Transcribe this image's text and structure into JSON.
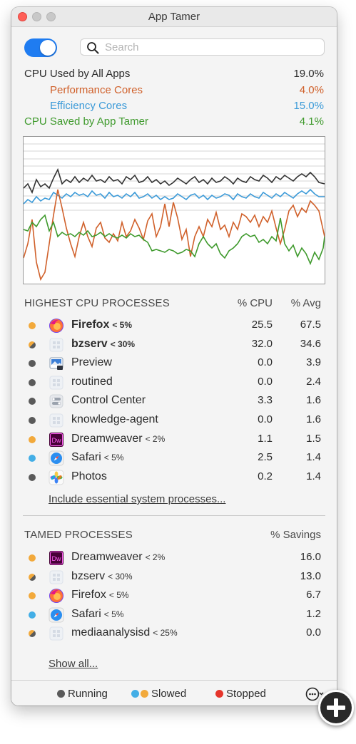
{
  "window": {
    "title": "App Tamer"
  },
  "search": {
    "placeholder": "Search",
    "value": ""
  },
  "stats": [
    {
      "label": "CPU Used by All Apps",
      "value": "19.0%",
      "color": "#2b2b2b"
    },
    {
      "label": "Performance Cores",
      "value": "4.0%",
      "color": "#d0602a"
    },
    {
      "label": "Efficiency Cores",
      "value": "15.0%",
      "color": "#3b9ad8"
    },
    {
      "label": "CPU Saved by App Tamer",
      "value": "4.1%",
      "color": "#3f9a2d"
    }
  ],
  "highest": {
    "title": "HIGHEST CPU PROCESSES",
    "col_cpu": "% CPU",
    "col_avg": "% Avg",
    "rows": [
      {
        "name": "Firefox",
        "limit": "< 5%",
        "bold": true,
        "status": "slowed",
        "icon": "firefox-icon",
        "cpu": "25.5",
        "avg": "67.5"
      },
      {
        "name": "bzserv",
        "limit": "< 30%",
        "bold": true,
        "status": "half",
        "icon": "generic-app-icon",
        "cpu": "32.0",
        "avg": "34.6"
      },
      {
        "name": "Preview",
        "limit": "",
        "bold": false,
        "status": "running",
        "icon": "preview-icon",
        "cpu": "0.0",
        "avg": "3.9"
      },
      {
        "name": "routined",
        "limit": "",
        "bold": false,
        "status": "running",
        "icon": "generic-app-icon",
        "cpu": "0.0",
        "avg": "2.4"
      },
      {
        "name": "Control Center",
        "limit": "",
        "bold": false,
        "status": "running",
        "icon": "control-center-icon",
        "cpu": "3.3",
        "avg": "1.6"
      },
      {
        "name": "knowledge-agent",
        "limit": "",
        "bold": false,
        "status": "running",
        "icon": "generic-app-icon",
        "cpu": "0.0",
        "avg": "1.6"
      },
      {
        "name": "Dreamweaver",
        "limit": "< 2%",
        "bold": false,
        "status": "slowed",
        "icon": "dreamweaver-icon",
        "cpu": "1.1",
        "avg": "1.5"
      },
      {
        "name": "Safari",
        "limit": "< 5%",
        "bold": false,
        "status": "blue",
        "icon": "safari-icon",
        "cpu": "2.5",
        "avg": "1.4"
      },
      {
        "name": "Photos",
        "limit": "",
        "bold": false,
        "status": "running",
        "icon": "photos-icon",
        "cpu": "0.2",
        "avg": "1.4"
      }
    ],
    "link": "Include essential system processes..."
  },
  "tamed": {
    "title": "TAMED PROCESSES",
    "col_savings": "% Savings",
    "rows": [
      {
        "name": "Dreamweaver",
        "limit": "< 2%",
        "status": "slowed",
        "icon": "dreamweaver-icon",
        "savings": "16.0"
      },
      {
        "name": "bzserv",
        "limit": "< 30%",
        "status": "half",
        "icon": "generic-app-icon",
        "savings": "13.0"
      },
      {
        "name": "Firefox",
        "limit": "< 5%",
        "status": "slowed",
        "icon": "firefox-icon",
        "savings": "6.7"
      },
      {
        "name": "Safari",
        "limit": "< 5%",
        "status": "blue",
        "icon": "safari-icon",
        "savings": "1.2"
      },
      {
        "name": "mediaanalysisd",
        "limit": "< 25%",
        "status": "half",
        "icon": "generic-app-icon",
        "savings": "0.0"
      }
    ],
    "link": "Show all..."
  },
  "legend": {
    "running": "Running",
    "slowed": "Slowed",
    "stopped": "Stopped"
  },
  "colors": {
    "accent": "#1f7cf1",
    "slowed": "#f2a93b",
    "blue": "#43aee6",
    "stopped": "#e5352b",
    "running": "#5a5a5a"
  }
}
